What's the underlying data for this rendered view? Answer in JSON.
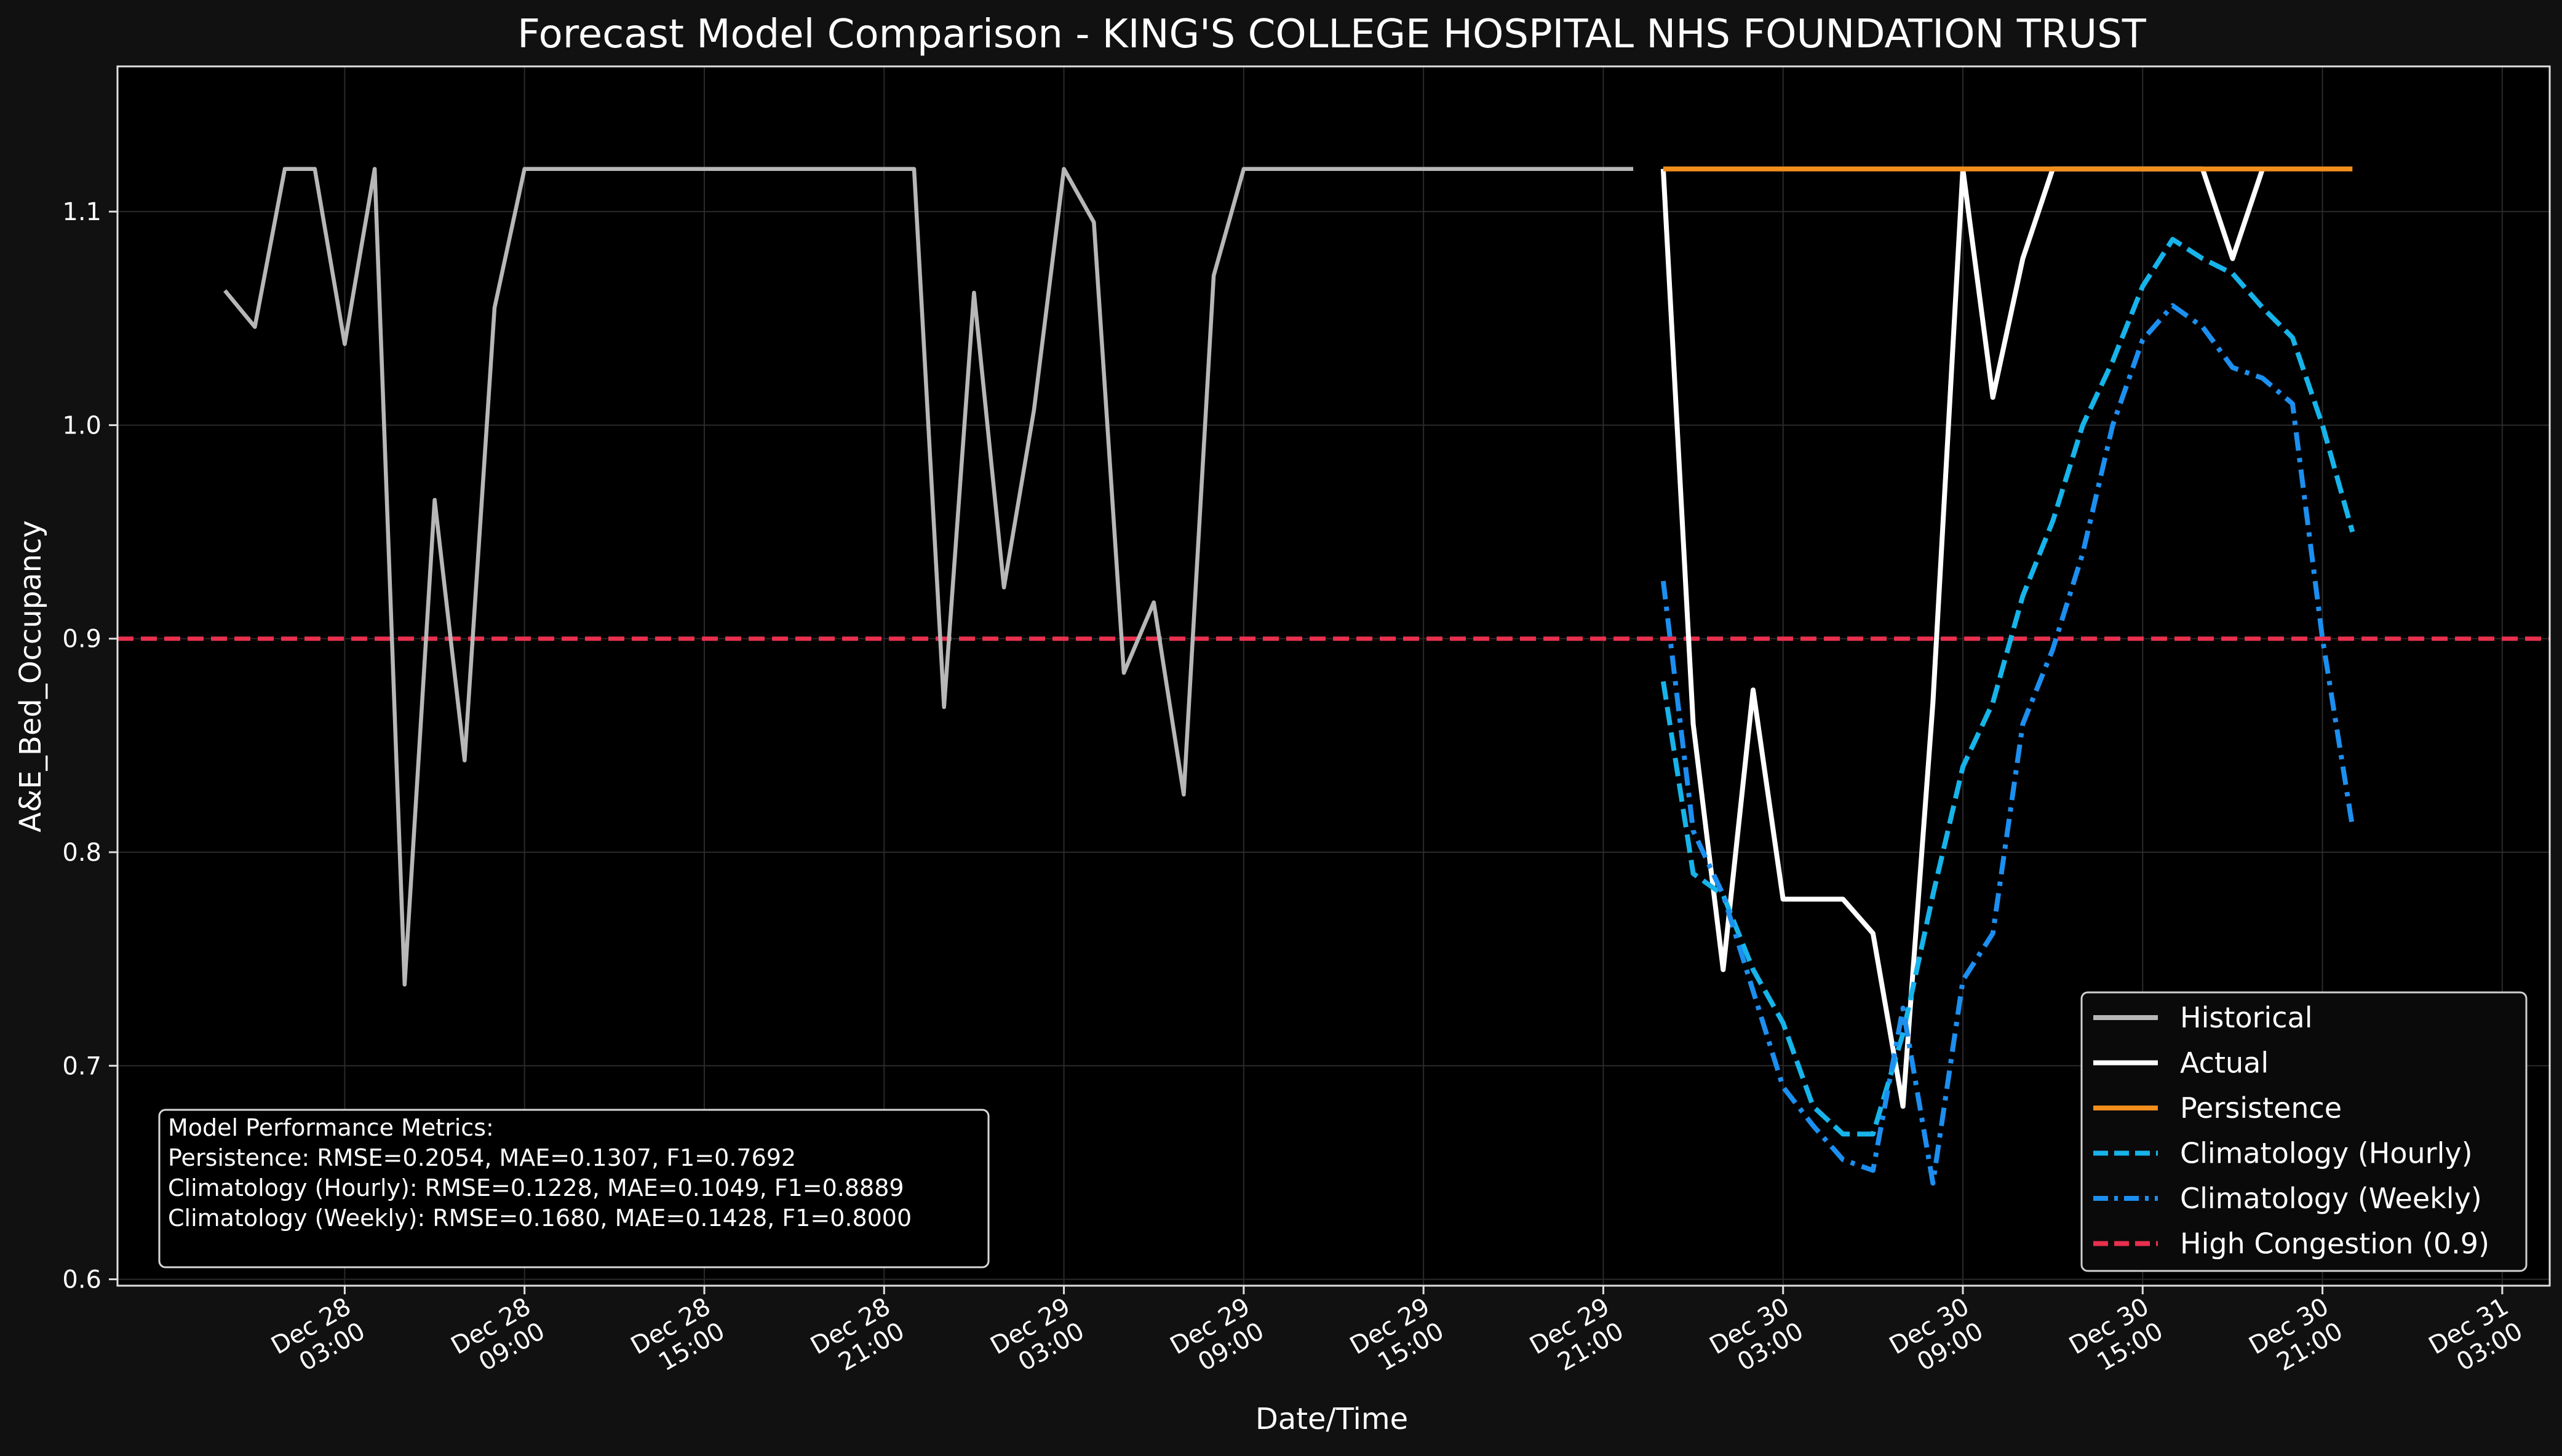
{
  "chart_data": {
    "type": "line",
    "title": "Forecast Model Comparison - KING'S COLLEGE HOSPITAL NHS FOUNDATION TRUST",
    "xlabel": "Date/Time",
    "ylabel": "A&E_Bed_Occupancy",
    "x_unit": "datetime",
    "xlim": [
      "2024-12-27 19:25",
      "2024-12-31 04:35"
    ],
    "ylim": [
      0.597,
      1.168
    ],
    "grid": true,
    "legend_position": "lower right",
    "x_ticks": [
      {
        "value": "2024-12-28 03:00",
        "line1": "Dec 28",
        "line2": "03:00"
      },
      {
        "value": "2024-12-28 09:00",
        "line1": "Dec 28",
        "line2": "09:00"
      },
      {
        "value": "2024-12-28 15:00",
        "line1": "Dec 28",
        "line2": "15:00"
      },
      {
        "value": "2024-12-28 21:00",
        "line1": "Dec 28",
        "line2": "21:00"
      },
      {
        "value": "2024-12-29 03:00",
        "line1": "Dec 29",
        "line2": "03:00"
      },
      {
        "value": "2024-12-29 09:00",
        "line1": "Dec 29",
        "line2": "09:00"
      },
      {
        "value": "2024-12-29 15:00",
        "line1": "Dec 29",
        "line2": "15:00"
      },
      {
        "value": "2024-12-29 21:00",
        "line1": "Dec 29",
        "line2": "21:00"
      },
      {
        "value": "2024-12-30 03:00",
        "line1": "Dec 30",
        "line2": "03:00"
      },
      {
        "value": "2024-12-30 09:00",
        "line1": "Dec 30",
        "line2": "09:00"
      },
      {
        "value": "2024-12-30 15:00",
        "line1": "Dec 30",
        "line2": "15:00"
      },
      {
        "value": "2024-12-30 21:00",
        "line1": "Dec 30",
        "line2": "21:00"
      },
      {
        "value": "2024-12-31 03:00",
        "line1": "Dec 31",
        "line2": "03:00"
      }
    ],
    "y_ticks": [
      {
        "value": 0.6,
        "label": "0.6"
      },
      {
        "value": 0.7,
        "label": "0.7"
      },
      {
        "value": 0.8,
        "label": "0.8"
      },
      {
        "value": 0.9,
        "label": "0.9"
      },
      {
        "value": 1.0,
        "label": "1.0"
      },
      {
        "value": 1.1,
        "label": "1.1"
      }
    ],
    "threshold": {
      "name": "High Congestion (0.9)",
      "value": 0.9,
      "color": "#e8304e"
    },
    "series": [
      {
        "name": "Historical",
        "color": "#b7b7b7",
        "style": "solid",
        "width": 6.5,
        "points": [
          [
            "2024-12-27 23:00",
            1.063
          ],
          [
            "2024-12-28 00:00",
            1.046
          ],
          [
            "2024-12-28 01:00",
            1.12
          ],
          [
            "2024-12-28 02:00",
            1.12
          ],
          [
            "2024-12-28 03:00",
            1.038
          ],
          [
            "2024-12-28 04:00",
            1.12
          ],
          [
            "2024-12-28 05:00",
            0.738
          ],
          [
            "2024-12-28 06:00",
            0.965
          ],
          [
            "2024-12-28 07:00",
            0.843
          ],
          [
            "2024-12-28 08:00",
            1.055
          ],
          [
            "2024-12-28 09:00",
            1.12
          ],
          [
            "2024-12-28 22:00",
            1.12
          ],
          [
            "2024-12-28 23:00",
            0.868
          ],
          [
            "2024-12-29 00:00",
            1.062
          ],
          [
            "2024-12-29 01:00",
            0.924
          ],
          [
            "2024-12-29 02:00",
            1.007
          ],
          [
            "2024-12-29 03:00",
            1.12
          ],
          [
            "2024-12-29 04:00",
            1.095
          ],
          [
            "2024-12-29 05:00",
            0.884
          ],
          [
            "2024-12-29 06:00",
            0.917
          ],
          [
            "2024-12-29 07:00",
            0.827
          ],
          [
            "2024-12-29 08:00",
            1.07
          ],
          [
            "2024-12-29 09:00",
            1.12
          ],
          [
            "2024-12-29 22:00",
            1.12
          ]
        ]
      },
      {
        "name": "Actual",
        "color": "#ffffff",
        "style": "solid",
        "width": 8,
        "points": [
          [
            "2024-12-29 23:00",
            1.12
          ],
          [
            "2024-12-30 00:00",
            0.86
          ],
          [
            "2024-12-30 01:00",
            0.745
          ],
          [
            "2024-12-30 02:00",
            0.876
          ],
          [
            "2024-12-30 03:00",
            0.778
          ],
          [
            "2024-12-30 04:00",
            0.778
          ],
          [
            "2024-12-30 05:00",
            0.778
          ],
          [
            "2024-12-30 06:00",
            0.762
          ],
          [
            "2024-12-30 07:00",
            0.681
          ],
          [
            "2024-12-30 08:00",
            0.87
          ],
          [
            "2024-12-30 09:00",
            1.12
          ],
          [
            "2024-12-30 10:00",
            1.013
          ],
          [
            "2024-12-30 11:00",
            1.078
          ],
          [
            "2024-12-30 12:00",
            1.12
          ],
          [
            "2024-12-30 17:00",
            1.12
          ],
          [
            "2024-12-30 18:00",
            1.078
          ],
          [
            "2024-12-30 19:00",
            1.12
          ]
        ]
      },
      {
        "name": "Persistence",
        "color": "#f28e1c",
        "style": "solid",
        "width": 8,
        "points": [
          [
            "2024-12-29 23:00",
            1.12
          ],
          [
            "2024-12-30 22:00",
            1.12
          ]
        ]
      },
      {
        "name": "Climatology (Hourly)",
        "color": "#16b4ea",
        "style": "dashed",
        "width": 8,
        "points": [
          [
            "2024-12-29 23:00",
            0.88
          ],
          [
            "2024-12-30 00:00",
            0.79
          ],
          [
            "2024-12-30 01:00",
            0.78
          ],
          [
            "2024-12-30 02:00",
            0.745
          ],
          [
            "2024-12-30 03:00",
            0.72
          ],
          [
            "2024-12-30 04:00",
            0.681
          ],
          [
            "2024-12-30 05:00",
            0.668
          ],
          [
            "2024-12-30 06:00",
            0.668
          ],
          [
            "2024-12-30 07:00",
            0.715
          ],
          [
            "2024-12-30 08:00",
            0.78
          ],
          [
            "2024-12-30 09:00",
            0.84
          ],
          [
            "2024-12-30 10:00",
            0.87
          ],
          [
            "2024-12-30 11:00",
            0.92
          ],
          [
            "2024-12-30 12:00",
            0.955
          ],
          [
            "2024-12-30 13:00",
            1.0
          ],
          [
            "2024-12-30 14:00",
            1.03
          ],
          [
            "2024-12-30 15:00",
            1.065
          ],
          [
            "2024-12-30 16:00",
            1.087
          ],
          [
            "2024-12-30 17:00",
            1.078
          ],
          [
            "2024-12-30 18:00",
            1.071
          ],
          [
            "2024-12-30 19:00",
            1.055
          ],
          [
            "2024-12-30 20:00",
            1.041
          ],
          [
            "2024-12-30 21:00",
            1.0
          ],
          [
            "2024-12-30 22:00",
            0.95
          ]
        ]
      },
      {
        "name": "Climatology (Weekly)",
        "color": "#1c8ff0",
        "style": "dashdot",
        "width": 8,
        "points": [
          [
            "2024-12-29 23:00",
            0.927
          ],
          [
            "2024-12-30 00:00",
            0.81
          ],
          [
            "2024-12-30 01:00",
            0.78
          ],
          [
            "2024-12-30 02:00",
            0.735
          ],
          [
            "2024-12-30 03:00",
            0.69
          ],
          [
            "2024-12-30 04:00",
            0.672
          ],
          [
            "2024-12-30 05:00",
            0.656
          ],
          [
            "2024-12-30 06:00",
            0.651
          ],
          [
            "2024-12-30 07:00",
            0.727
          ],
          [
            "2024-12-30 08:00",
            0.645
          ],
          [
            "2024-12-30 09:00",
            0.74
          ],
          [
            "2024-12-30 10:00",
            0.762
          ],
          [
            "2024-12-30 11:00",
            0.86
          ],
          [
            "2024-12-30 12:00",
            0.895
          ],
          [
            "2024-12-30 13:00",
            0.94
          ],
          [
            "2024-12-30 14:00",
            1.0
          ],
          [
            "2024-12-30 15:00",
            1.04
          ],
          [
            "2024-12-30 16:00",
            1.056
          ],
          [
            "2024-12-30 17:00",
            1.046
          ],
          [
            "2024-12-30 18:00",
            1.027
          ],
          [
            "2024-12-30 19:00",
            1.022
          ],
          [
            "2024-12-30 20:00",
            1.01
          ],
          [
            "2024-12-30 21:00",
            0.9
          ],
          [
            "2024-12-30 22:00",
            0.812
          ]
        ]
      }
    ],
    "legend": [
      {
        "label": "Historical",
        "color": "#b7b7b7",
        "style": "solid"
      },
      {
        "label": "Actual",
        "color": "#ffffff",
        "style": "solid"
      },
      {
        "label": "Persistence",
        "color": "#f28e1c",
        "style": "solid"
      },
      {
        "label": "Climatology (Hourly)",
        "color": "#16b4ea",
        "style": "dashed"
      },
      {
        "label": "Climatology (Weekly)",
        "color": "#1c8ff0",
        "style": "dashdot"
      },
      {
        "label": "High Congestion (0.9)",
        "color": "#e8304e",
        "style": "dashed"
      }
    ],
    "annotations": [
      "Model Performance Metrics:",
      "Persistence: RMSE=0.2054, MAE=0.1307, F1=0.7692",
      "Climatology (Hourly): RMSE=0.1228, MAE=0.1049, F1=0.8889",
      "Climatology (Weekly): RMSE=0.1680, MAE=0.1428, F1=0.8000"
    ]
  },
  "colors": {
    "figure_background": "#111111",
    "plot_background": "#000000",
    "axes_edge": "#e0e0e0",
    "text": "#ffffff",
    "grid": "#2a2a2a"
  }
}
